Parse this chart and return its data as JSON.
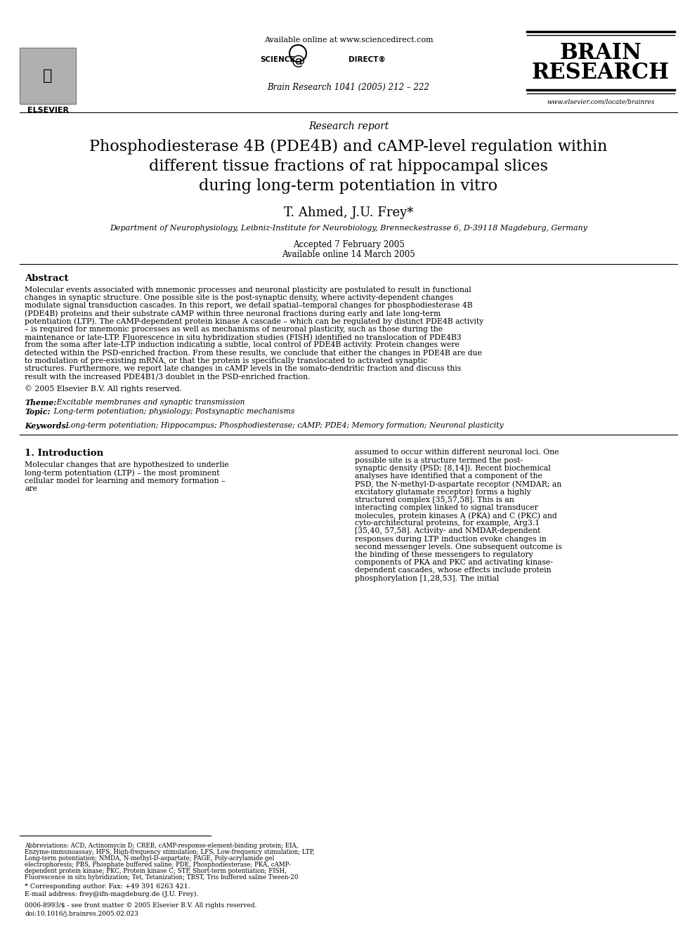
{
  "page_width": 9.92,
  "page_height": 13.23,
  "bg_color": "#ffffff",
  "header_available_online": "Available online at www.sciencedirect.com",
  "header_journal_line": "Brain Research 1041 (2005) 212 – 222",
  "journal_title_line1": "BRAIN",
  "journal_title_line2": "RESEARCH",
  "journal_url": "www.elsevier.com/locate/brainres",
  "section_label": "Research report",
  "article_title": "Phosphodiesterase 4B (PDE4B) and cAMP-level regulation within\ndifferent tissue fractions of rat hippocampal slices\nduring long-term potentiation in vitro",
  "authors": "T. Ahmed, J.U. Frey*",
  "affiliation": "Department of Neurophysiology, Leibniz-Institute for Neurobiology, Brenneckestrasse 6, D-39118 Magdeburg, Germany",
  "accepted": "Accepted 7 February 2005",
  "available_online": "Available online 14 March 2005",
  "abstract_title": "Abstract",
  "abstract_text": "Molecular events associated with mnemonic processes and neuronal plasticity are postulated to result in functional changes in synaptic structure. One possible site is the post-synaptic density, where activity-dependent changes modulate signal transduction cascades. In this report, we detail spatial–temporal changes for phosphodiesterase 4B (PDE4B) proteins and their substrate cAMP within three neuronal fractions during early and late long-term potentiation (LTP). The cAMP-dependent protein kinase A cascade – which can be regulated by distinct PDE4B activity – is required for mnemonic processes as well as mechanisms of neuronal plasticity, such as those during the maintenance or late-LTP. Fluorescence in situ hybridization studies (FISH) identified no translocation of PDE4B3 from the soma after late-LTP induction indicating a subtle, local control of PDE4B activity. Protein changes were detected within the PSD-enriched fraction. From these results, we conclude that either the changes in PDE4B are due to modulation of pre-existing mRNA, or that the protein is specifically translocated to activated synaptic structures. Furthermore, we report late changes in cAMP levels in the somato-dendritic fraction and discuss this result with the increased PDE4B1/3 doublet in the PSD-enriched fraction.",
  "copyright": "© 2005 Elsevier B.V. All rights reserved.",
  "theme_label": "Theme:",
  "theme_text": " Excitable membranes and synaptic transmission",
  "topic_label": "Topic:",
  "topic_text": " Long-term potentiation; physiology; Postsynaptic mechanisms",
  "keywords_label": "Keywords:",
  "keywords_text": " Long-term potentiation; Hippocampus; Phosphodiesterase; cAMP; PDE4; Memory formation; Neuronal plasticity",
  "intro_heading": "1. Introduction",
  "intro_col1_text": "Molecular changes that are hypothesized to underlie long-term potentiation (LTP) – the most prominent cellular model for learning and memory formation – are",
  "intro_col2_text": "assumed to occur within different neuronal loci. One possible site is a structure termed the post-synaptic density (PSD; [8,14]). Recent biochemical analyses have identified that a component of the PSD, the N-methyl-D-aspartate receptor (NMDAR; an excitatory glutamate receptor) forms a highly structured complex [35,57,58]. This is an interacting complex linked to signal transducer molecules, protein kinases A (PKA) and C (PKC) and cyto-architectural proteins, for example, Arg3.1 [35,40, 57,58]. Activity- and NMDAR-dependent responses during LTP induction evoke changes in second messenger levels. One subsequent outcome is the binding of these messengers to regulatory components of PKA and PKC and activating kinase-dependent cascades, whose effects include protein phosphorylation [1,28,53]. The initial",
  "footnote_abbrev": "Abbreviations: ACD, Actinomycin D; CREB, cAMP-response-element-binding protein; EIA, Enzyme-immunoassay; HFS, High-frequency stimulation; LFS, Low-frequency stimulation; LTP, Long-term potentiation; NMDA, N-methyl-D-aspartate; PAGE, Poly-acrylamide gel electrophoresis; PBS, Phosphate buffered saline; PDE, Phosphodiesterase; PKA, cAMP-dependent protein kinase; PKC, Protein kinase C; STP, Short-term potentiation; FISH, Fluorescence in situ hybridization; Tet, Tetanization; TBST, Tris buffered saline Tween-20",
  "footnote_corresponding": "* Corresponding author. Fax: +49 391 6263 421.",
  "footnote_email": "E-mail address: frey@ifn-magdeburg.de (J.U. Frey).",
  "footer_issn": "0006-8993/$ - see front matter © 2005 Elsevier B.V. All rights reserved.",
  "footer_doi": "doi:10.1016/j.brainres.2005.02.023"
}
